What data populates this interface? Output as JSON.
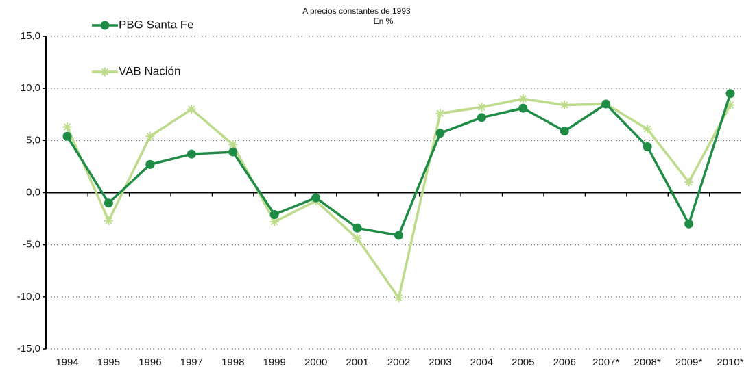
{
  "chart_data": {
    "type": "line",
    "title": "A precios constantes de 1993",
    "subtitle": "En %",
    "categories": [
      "1994",
      "1995",
      "1996",
      "1997",
      "1998",
      "1999",
      "2000",
      "2001",
      "2002",
      "2003",
      "2004",
      "2005",
      "2006",
      "2007*",
      "2008*",
      "2009*",
      "2010*"
    ],
    "series": [
      {
        "name": "PBG Santa Fe",
        "color": "#1e8c45",
        "marker": "circle",
        "values": [
          5.4,
          -1.0,
          2.7,
          3.7,
          3.9,
          -2.1,
          -0.5,
          -3.4,
          -4.1,
          5.7,
          7.2,
          8.1,
          5.9,
          8.5,
          4.4,
          -3.0,
          9.5
        ]
      },
      {
        "name": "VAB Nación",
        "color": "#bcdc8c",
        "marker": "star",
        "values": [
          6.3,
          -2.7,
          5.4,
          8.0,
          4.6,
          -2.8,
          -0.8,
          -4.4,
          -10.1,
          7.6,
          8.2,
          9.0,
          8.4,
          8.5,
          6.1,
          1.0,
          8.4
        ]
      }
    ],
    "ylim": [
      -15,
      15
    ],
    "yticks": [
      {
        "value": -15,
        "label": "-15,0"
      },
      {
        "value": -10,
        "label": "-10,0"
      },
      {
        "value": -5,
        "label": "-5,0"
      },
      {
        "value": 0,
        "label": "0,0"
      },
      {
        "value": 5,
        "label": "5,0"
      },
      {
        "value": 10,
        "label": "10,0"
      },
      {
        "value": 15,
        "label": "15,0"
      }
    ],
    "grid": true
  }
}
